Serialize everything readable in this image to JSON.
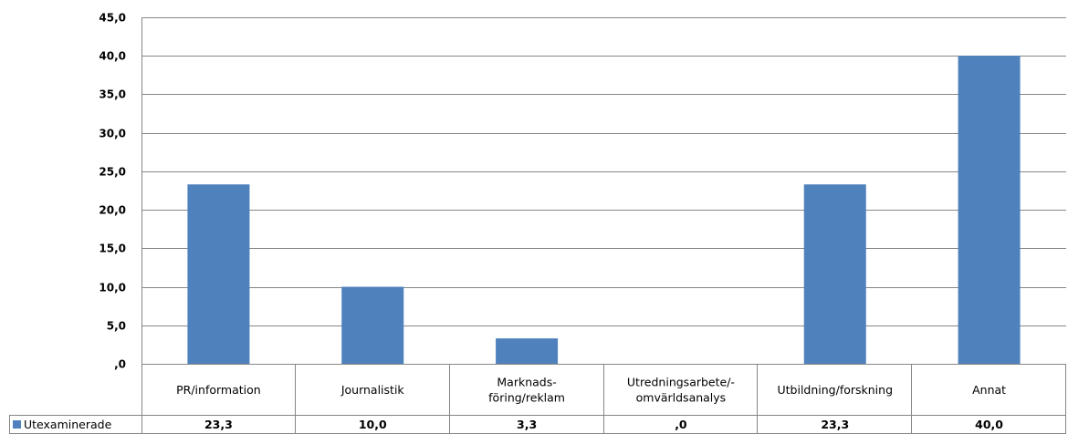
{
  "chart_data": {
    "type": "bar",
    "categories": [
      [
        "PR/information"
      ],
      [
        "Journalistik"
      ],
      [
        "Marknads-",
        "föring/reklam"
      ],
      [
        "Utredningsarbete/-",
        "omvärldsanalys"
      ],
      [
        "Utbildning/forskning"
      ],
      [
        "Annat"
      ]
    ],
    "series": [
      {
        "name": "Utexaminerade",
        "values": [
          23.3,
          10.0,
          3.3,
          0.0,
          23.3,
          40.0
        ],
        "value_labels": [
          "23,3",
          "10,0",
          "3,3",
          ",0",
          "23,3",
          "40,0"
        ],
        "color": "#4f81bd"
      }
    ],
    "ylim": [
      0,
      45
    ],
    "yticks": [
      {
        "value": 45,
        "label": "45,0"
      },
      {
        "value": 40,
        "label": "40,0"
      },
      {
        "value": 35,
        "label": "35,0"
      },
      {
        "value": 30,
        "label": "30,0"
      },
      {
        "value": 25,
        "label": "25,0"
      },
      {
        "value": 20,
        "label": "20,0"
      },
      {
        "value": 15,
        "label": "15,0"
      },
      {
        "value": 10,
        "label": "10,0"
      },
      {
        "value": 5,
        "label": "5,0"
      },
      {
        "value": 0,
        "label": ",0"
      }
    ],
    "grid": true,
    "legend": "data-table",
    "title": "",
    "xlabel": "",
    "ylabel": ""
  }
}
